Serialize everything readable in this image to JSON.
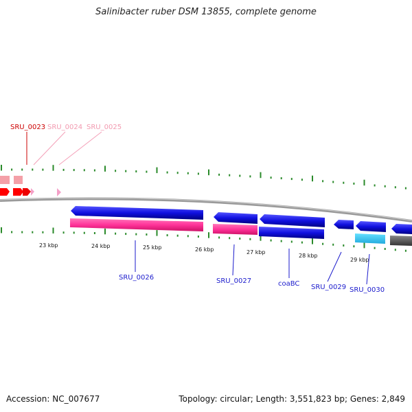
{
  "title": "Salinibacter ruber DSM 13855, complete genome",
  "footer": {
    "accession": "Accession: NC_007677",
    "summary": "Topology: circular; Length: 3,551,823 bp; Genes: 2,849"
  },
  "scale_labels": [
    "23 kbp",
    "24 kbp",
    "25 kbp",
    "26 kbp",
    "27 kbp",
    "28 kbp",
    "29 kbp"
  ],
  "gene_labels": [
    {
      "id": "SRU_0023",
      "color": "#cc0000"
    },
    {
      "id": "SRU_0024",
      "color": "#f29ab0"
    },
    {
      "id": "SRU_0025",
      "color": "#f29ab0"
    },
    {
      "id": "SRU_0026",
      "color": "#1a1acc"
    },
    {
      "id": "SRU_0027",
      "color": "#1a1acc"
    },
    {
      "id": "coaBC",
      "color": "#1a1acc"
    },
    {
      "id": "SRU_0029",
      "color": "#1a1acc"
    },
    {
      "id": "SRU_0030",
      "color": "#1a1acc"
    }
  ],
  "colors": {
    "forward_gene": "#1010e0",
    "cds": "#ff3399",
    "rna": "#33ccee",
    "pseudo": "#555555",
    "upstream_gene": "#ff0000",
    "upstream_rna": "#f4a0a8",
    "tick": "#2a8a2a",
    "backbone": "#888888"
  }
}
